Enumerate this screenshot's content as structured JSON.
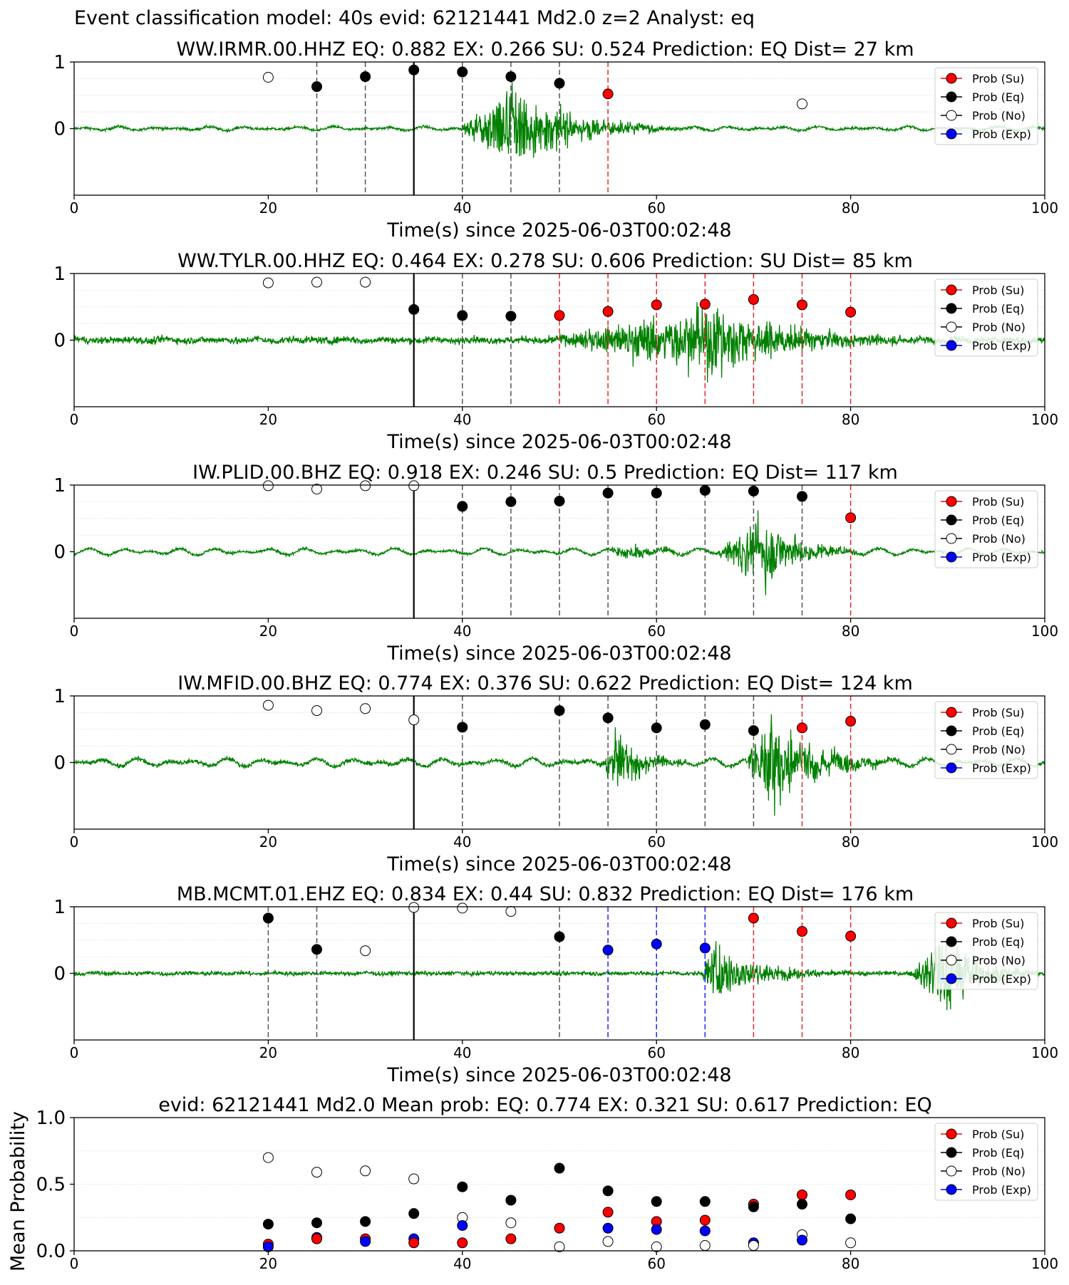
{
  "figure_title": "Event classification model: 40s evid: 62121441 Md2.0 z=2 Analyst: eq",
  "colors": {
    "su": "#ff0000",
    "eq": "#000000",
    "no": "#ffffff",
    "exp": "#0000ff",
    "waveform": "#008000",
    "su_line": "#e8262d",
    "exp_line": "#2020ff",
    "eq_line": "#555555"
  },
  "legend_labels": [
    "Prob (Su)",
    "Prob (Eq)",
    "Prob (No)",
    "Prob (Exp)"
  ],
  "chart_data": [
    {
      "type": "scatter",
      "title": "WW.IRMR.00.HHZ   EQ: 0.882  EX: 0.266  SU: 0.524   Prediction: EQ    Dist= 27 km",
      "xlabel": "Time(s) since 2025-06-03T00:02:48",
      "ylabel": "",
      "xlim": [
        0,
        100
      ],
      "ylim": [
        -1,
        1
      ],
      "xticks": [
        "0",
        "20",
        "40",
        "60",
        "80",
        "100"
      ],
      "yticks": [
        "0",
        "1"
      ],
      "pick_time": 35,
      "vlines": [
        {
          "x": 25,
          "cls": "eq"
        },
        {
          "x": 30,
          "cls": "eq"
        },
        {
          "x": 40,
          "cls": "eq"
        },
        {
          "x": 45,
          "cls": "eq"
        },
        {
          "x": 50,
          "cls": "eq"
        },
        {
          "x": 55,
          "cls": "su"
        }
      ],
      "points": [
        {
          "x": 20,
          "y": 0.77,
          "cls": "no"
        },
        {
          "x": 25,
          "y": 0.63,
          "cls": "eq"
        },
        {
          "x": 30,
          "y": 0.78,
          "cls": "eq"
        },
        {
          "x": 35,
          "y": 0.88,
          "cls": "eq"
        },
        {
          "x": 40,
          "y": 0.85,
          "cls": "eq"
        },
        {
          "x": 45,
          "y": 0.78,
          "cls": "eq"
        },
        {
          "x": 50,
          "y": 0.68,
          "cls": "eq"
        },
        {
          "x": 55,
          "y": 0.52,
          "cls": "su"
        },
        {
          "x": 75,
          "y": 0.37,
          "cls": "no"
        }
      ],
      "waveform": {
        "noise": 0.02,
        "lf": 0.03,
        "bursts": [
          {
            "t0": 39.5,
            "peak": 45,
            "t1": 60,
            "amp": 0.75
          },
          {
            "t0": 52,
            "peak": 56,
            "t1": 68,
            "amp": 0.12
          }
        ]
      }
    },
    {
      "type": "scatter",
      "title": "WW.TYLR.00.HHZ   EQ: 0.464  EX: 0.278  SU: 0.606   Prediction: SU    Dist= 85 km",
      "xlabel": "Time(s) since 2025-06-03T00:02:48",
      "ylabel": "",
      "xlim": [
        0,
        100
      ],
      "ylim": [
        -1,
        1
      ],
      "xticks": [
        "0",
        "20",
        "40",
        "60",
        "80",
        "100"
      ],
      "yticks": [
        "0",
        "1"
      ],
      "pick_time": 35,
      "vlines": [
        {
          "x": 40,
          "cls": "eq"
        },
        {
          "x": 45,
          "cls": "eq"
        },
        {
          "x": 50,
          "cls": "su"
        },
        {
          "x": 55,
          "cls": "su"
        },
        {
          "x": 60,
          "cls": "su"
        },
        {
          "x": 65,
          "cls": "su"
        },
        {
          "x": 70,
          "cls": "su"
        },
        {
          "x": 75,
          "cls": "su"
        },
        {
          "x": 80,
          "cls": "su"
        }
      ],
      "points": [
        {
          "x": 20,
          "y": 0.86,
          "cls": "no"
        },
        {
          "x": 25,
          "y": 0.87,
          "cls": "no"
        },
        {
          "x": 30,
          "y": 0.87,
          "cls": "no"
        },
        {
          "x": 35,
          "y": 0.46,
          "cls": "eq"
        },
        {
          "x": 40,
          "y": 0.37,
          "cls": "eq"
        },
        {
          "x": 45,
          "y": 0.36,
          "cls": "eq"
        },
        {
          "x": 50,
          "y": 0.37,
          "cls": "su"
        },
        {
          "x": 55,
          "y": 0.43,
          "cls": "su"
        },
        {
          "x": 60,
          "y": 0.53,
          "cls": "su"
        },
        {
          "x": 65,
          "y": 0.54,
          "cls": "su"
        },
        {
          "x": 70,
          "y": 0.61,
          "cls": "su"
        },
        {
          "x": 75,
          "y": 0.53,
          "cls": "su"
        },
        {
          "x": 80,
          "y": 0.42,
          "cls": "su"
        }
      ],
      "waveform": {
        "noise": 0.05,
        "lf": 0.02,
        "bursts": [
          {
            "t0": 48,
            "peak": 67,
            "t1": 88,
            "amp": 0.55
          }
        ]
      }
    },
    {
      "type": "scatter",
      "title": "IW.PLID.00.BHZ   EQ: 0.918  EX: 0.246  SU: 0.5   Prediction: EQ    Dist= 117 km",
      "xlabel": "Time(s) since 2025-06-03T00:02:48",
      "ylabel": "",
      "xlim": [
        0,
        100
      ],
      "ylim": [
        -1,
        1
      ],
      "xticks": [
        "0",
        "20",
        "40",
        "60",
        "80",
        "100"
      ],
      "yticks": [
        "0",
        "1"
      ],
      "pick_time": 35,
      "vlines": [
        {
          "x": 40,
          "cls": "eq"
        },
        {
          "x": 45,
          "cls": "eq"
        },
        {
          "x": 50,
          "cls": "eq"
        },
        {
          "x": 55,
          "cls": "eq"
        },
        {
          "x": 60,
          "cls": "eq"
        },
        {
          "x": 65,
          "cls": "eq"
        },
        {
          "x": 70,
          "cls": "eq"
        },
        {
          "x": 75,
          "cls": "eq"
        },
        {
          "x": 80,
          "cls": "su"
        }
      ],
      "points": [
        {
          "x": 20,
          "y": 0.99,
          "cls": "no"
        },
        {
          "x": 25,
          "y": 0.94,
          "cls": "no"
        },
        {
          "x": 30,
          "y": 0.99,
          "cls": "no"
        },
        {
          "x": 35,
          "y": 0.99,
          "cls": "no"
        },
        {
          "x": 40,
          "y": 0.68,
          "cls": "eq"
        },
        {
          "x": 45,
          "y": 0.75,
          "cls": "eq"
        },
        {
          "x": 50,
          "y": 0.76,
          "cls": "eq"
        },
        {
          "x": 55,
          "y": 0.88,
          "cls": "eq"
        },
        {
          "x": 60,
          "y": 0.88,
          "cls": "eq"
        },
        {
          "x": 65,
          "y": 0.92,
          "cls": "eq"
        },
        {
          "x": 70,
          "y": 0.91,
          "cls": "eq"
        },
        {
          "x": 75,
          "y": 0.83,
          "cls": "eq"
        },
        {
          "x": 80,
          "y": 0.51,
          "cls": "su"
        }
      ],
      "waveform": {
        "noise": 0.02,
        "lf": 0.05,
        "bursts": [
          {
            "t0": 54,
            "peak": 58,
            "t1": 66,
            "amp": 0.12
          },
          {
            "t0": 66,
            "peak": 71,
            "t1": 82,
            "amp": 0.55
          }
        ]
      }
    },
    {
      "type": "scatter",
      "title": "IW.MFID.00.BHZ   EQ: 0.774  EX: 0.376  SU: 0.622   Prediction: EQ    Dist= 124 km",
      "xlabel": "Time(s) since 2025-06-03T00:02:48",
      "ylabel": "",
      "xlim": [
        0,
        100
      ],
      "ylim": [
        -1,
        1
      ],
      "xticks": [
        "0",
        "20",
        "40",
        "60",
        "80",
        "100"
      ],
      "yticks": [
        "0",
        "1"
      ],
      "pick_time": 35,
      "vlines": [
        {
          "x": 40,
          "cls": "eq"
        },
        {
          "x": 50,
          "cls": "eq"
        },
        {
          "x": 55,
          "cls": "eq"
        },
        {
          "x": 60,
          "cls": "eq"
        },
        {
          "x": 65,
          "cls": "eq"
        },
        {
          "x": 70,
          "cls": "eq"
        },
        {
          "x": 75,
          "cls": "su"
        },
        {
          "x": 80,
          "cls": "su"
        }
      ],
      "points": [
        {
          "x": 20,
          "y": 0.86,
          "cls": "no"
        },
        {
          "x": 25,
          "y": 0.78,
          "cls": "no"
        },
        {
          "x": 30,
          "y": 0.81,
          "cls": "no"
        },
        {
          "x": 35,
          "y": 0.64,
          "cls": "no"
        },
        {
          "x": 40,
          "y": 0.53,
          "cls": "eq"
        },
        {
          "x": 50,
          "y": 0.78,
          "cls": "eq"
        },
        {
          "x": 55,
          "y": 0.67,
          "cls": "eq"
        },
        {
          "x": 60,
          "y": 0.52,
          "cls": "eq"
        },
        {
          "x": 65,
          "y": 0.57,
          "cls": "eq"
        },
        {
          "x": 70,
          "y": 0.48,
          "cls": "eq"
        },
        {
          "x": 75,
          "y": 0.52,
          "cls": "su"
        },
        {
          "x": 80,
          "y": 0.62,
          "cls": "su"
        }
      ],
      "waveform": {
        "noise": 0.03,
        "lf": 0.06,
        "bursts": [
          {
            "t0": 54,
            "peak": 56,
            "t1": 64,
            "amp": 0.45
          },
          {
            "t0": 69,
            "peak": 72,
            "t1": 85,
            "amp": 0.8
          }
        ]
      }
    },
    {
      "type": "scatter",
      "title": "MB.MCMT.01.EHZ   EQ: 0.834  EX: 0.44  SU: 0.832   Prediction: EQ    Dist= 176 km",
      "xlabel": "Time(s) since 2025-06-03T00:02:48",
      "ylabel": "",
      "xlim": [
        0,
        100
      ],
      "ylim": [
        -1,
        1
      ],
      "xticks": [
        "0",
        "20",
        "40",
        "60",
        "80",
        "100"
      ],
      "yticks": [
        "0",
        "1"
      ],
      "pick_time": 35,
      "vlines": [
        {
          "x": 20,
          "cls": "eq"
        },
        {
          "x": 25,
          "cls": "eq"
        },
        {
          "x": 50,
          "cls": "eq"
        },
        {
          "x": 55,
          "cls": "exp"
        },
        {
          "x": 60,
          "cls": "exp"
        },
        {
          "x": 65,
          "cls": "exp"
        },
        {
          "x": 70,
          "cls": "su"
        },
        {
          "x": 75,
          "cls": "su"
        },
        {
          "x": 80,
          "cls": "su"
        }
      ],
      "points": [
        {
          "x": 20,
          "y": 0.83,
          "cls": "eq"
        },
        {
          "x": 25,
          "y": 0.36,
          "cls": "eq"
        },
        {
          "x": 30,
          "y": 0.34,
          "cls": "no"
        },
        {
          "x": 35,
          "y": 0.99,
          "cls": "no"
        },
        {
          "x": 40,
          "y": 0.98,
          "cls": "no"
        },
        {
          "x": 45,
          "y": 0.93,
          "cls": "no"
        },
        {
          "x": 50,
          "y": 0.55,
          "cls": "eq"
        },
        {
          "x": 55,
          "y": 0.35,
          "cls": "exp"
        },
        {
          "x": 60,
          "y": 0.44,
          "cls": "exp"
        },
        {
          "x": 65,
          "y": 0.38,
          "cls": "exp"
        },
        {
          "x": 70,
          "y": 0.83,
          "cls": "su"
        },
        {
          "x": 75,
          "y": 0.63,
          "cls": "su"
        },
        {
          "x": 80,
          "y": 0.56,
          "cls": "su"
        }
      ],
      "waveform": {
        "noise": 0.03,
        "lf": 0.01,
        "bursts": [
          {
            "t0": 64.5,
            "peak": 66,
            "t1": 80,
            "amp": 0.45
          },
          {
            "t0": 86,
            "peak": 90,
            "t1": 100,
            "amp": 0.65
          }
        ]
      }
    },
    {
      "type": "scatter",
      "title": "evid: 62121441  Md2.0   Mean prob:   EQ: 0.774  EX: 0.321  SU: 0.617   Prediction: EQ",
      "xlabel": "",
      "ylabel": "Mean Probability",
      "xlim": [
        0,
        100
      ],
      "ylim": [
        0,
        1
      ],
      "xticks": [
        "0",
        "20",
        "40",
        "60",
        "80",
        "100"
      ],
      "yticks": [
        "0.0",
        "0.5",
        "1.0"
      ],
      "points": [
        {
          "x": 20,
          "y": 0.7,
          "cls": "no"
        },
        {
          "x": 20,
          "y": 0.2,
          "cls": "eq"
        },
        {
          "x": 20,
          "y": 0.05,
          "cls": "su"
        },
        {
          "x": 20,
          "y": 0.03,
          "cls": "exp"
        },
        {
          "x": 25,
          "y": 0.59,
          "cls": "no"
        },
        {
          "x": 25,
          "y": 0.21,
          "cls": "eq"
        },
        {
          "x": 25,
          "y": 0.1,
          "cls": "exp"
        },
        {
          "x": 25,
          "y": 0.09,
          "cls": "su"
        },
        {
          "x": 30,
          "y": 0.6,
          "cls": "no"
        },
        {
          "x": 30,
          "y": 0.22,
          "cls": "eq"
        },
        {
          "x": 30,
          "y": 0.09,
          "cls": "su"
        },
        {
          "x": 30,
          "y": 0.07,
          "cls": "exp"
        },
        {
          "x": 35,
          "y": 0.54,
          "cls": "no"
        },
        {
          "x": 35,
          "y": 0.28,
          "cls": "eq"
        },
        {
          "x": 35,
          "y": 0.09,
          "cls": "exp"
        },
        {
          "x": 35,
          "y": 0.06,
          "cls": "su"
        },
        {
          "x": 40,
          "y": 0.48,
          "cls": "eq"
        },
        {
          "x": 40,
          "y": 0.25,
          "cls": "no"
        },
        {
          "x": 40,
          "y": 0.19,
          "cls": "exp"
        },
        {
          "x": 40,
          "y": 0.06,
          "cls": "su"
        },
        {
          "x": 45,
          "y": 0.38,
          "cls": "eq"
        },
        {
          "x": 45,
          "y": 0.21,
          "cls": "no"
        },
        {
          "x": 45,
          "y": 0.09,
          "cls": "su"
        },
        {
          "x": 50,
          "y": 0.62,
          "cls": "eq"
        },
        {
          "x": 50,
          "y": 0.17,
          "cls": "su"
        },
        {
          "x": 50,
          "y": 0.03,
          "cls": "no"
        },
        {
          "x": 55,
          "y": 0.45,
          "cls": "eq"
        },
        {
          "x": 55,
          "y": 0.29,
          "cls": "su"
        },
        {
          "x": 55,
          "y": 0.17,
          "cls": "exp"
        },
        {
          "x": 55,
          "y": 0.07,
          "cls": "no"
        },
        {
          "x": 60,
          "y": 0.37,
          "cls": "eq"
        },
        {
          "x": 60,
          "y": 0.22,
          "cls": "su"
        },
        {
          "x": 60,
          "y": 0.16,
          "cls": "exp"
        },
        {
          "x": 60,
          "y": 0.03,
          "cls": "no"
        },
        {
          "x": 65,
          "y": 0.37,
          "cls": "eq"
        },
        {
          "x": 65,
          "y": 0.23,
          "cls": "su"
        },
        {
          "x": 65,
          "y": 0.15,
          "cls": "exp"
        },
        {
          "x": 65,
          "y": 0.04,
          "cls": "no"
        },
        {
          "x": 70,
          "y": 0.35,
          "cls": "su"
        },
        {
          "x": 70,
          "y": 0.33,
          "cls": "eq"
        },
        {
          "x": 70,
          "y": 0.06,
          "cls": "exp"
        },
        {
          "x": 70,
          "y": 0.04,
          "cls": "no"
        },
        {
          "x": 75,
          "y": 0.42,
          "cls": "su"
        },
        {
          "x": 75,
          "y": 0.35,
          "cls": "eq"
        },
        {
          "x": 75,
          "y": 0.12,
          "cls": "no"
        },
        {
          "x": 75,
          "y": 0.08,
          "cls": "exp"
        },
        {
          "x": 80,
          "y": 0.42,
          "cls": "su"
        },
        {
          "x": 80,
          "y": 0.24,
          "cls": "eq"
        },
        {
          "x": 80,
          "y": 0.06,
          "cls": "no"
        }
      ]
    }
  ]
}
